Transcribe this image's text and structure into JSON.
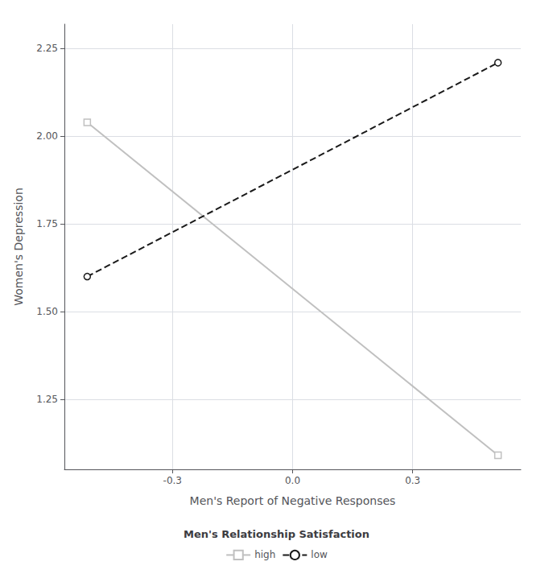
{
  "chart_data": {
    "type": "line",
    "xlabel": "Men's Report of Negative Responses",
    "ylabel": "Women's Depression",
    "legend_title": "Men's Relationship Satisfaction",
    "x": [
      -0.513,
      0.513
    ],
    "series": [
      {
        "name": "high",
        "color": "#c0c0c0",
        "marker": "square",
        "line_style": "solid",
        "values": [
          2.04,
          1.09
        ]
      },
      {
        "name": "low",
        "color": "#1a1a1a",
        "marker": "circle",
        "line_style": "dashed",
        "values": [
          1.6,
          2.21
        ]
      }
    ],
    "xlim": [
      -0.57,
      0.57
    ],
    "ylim": [
      1.05,
      2.32
    ],
    "xticks": [
      -0.3,
      {
        "value": 0.0,
        "label": "0.0"
      },
      0.3
    ],
    "yticks": [
      1.25,
      {
        "value": 1.5,
        "label": "1.50"
      },
      1.75,
      {
        "value": 2.0,
        "label": "2.00"
      },
      2.25
    ],
    "grid": true,
    "legend": "bottom"
  }
}
